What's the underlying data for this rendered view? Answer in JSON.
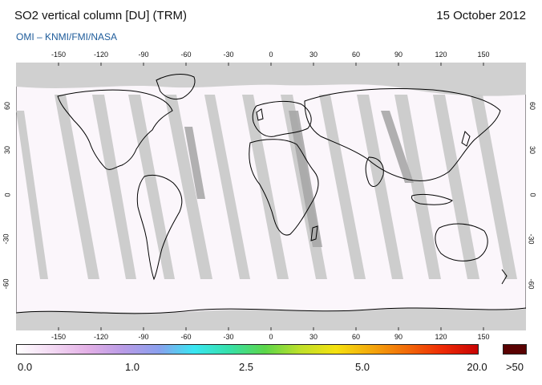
{
  "header": {
    "title": "SO2 vertical column [DU] (TRM)",
    "date": "15 October 2012",
    "credit": "OMI  –  KNMI/FMI/NASA"
  },
  "map": {
    "lon_ticks": [
      "-150",
      "-120",
      "-90",
      "-60",
      "-30",
      "0",
      "30",
      "60",
      "90",
      "120",
      "150"
    ],
    "lat_ticks": [
      "60",
      "30",
      "0",
      "-30",
      "-60"
    ],
    "land_outline_color": "#000000",
    "polar_no_data_color": "#d0d0d0",
    "orbit_gap_color": "#c8c8c8",
    "background_color": "#fbf6fb"
  },
  "colorbar": {
    "labels": [
      "0.0",
      "1.0",
      "2.5",
      "5.0",
      "20.0"
    ],
    "max_label": ">50",
    "max_color": "#5a0202",
    "gradient_colors": [
      "#ffffff",
      "#f3d9f3",
      "#e3b0e6",
      "#b99be6",
      "#8aa0ee",
      "#39e6f2",
      "#36e0a8",
      "#5cd64a",
      "#bfe02a",
      "#f5e10f",
      "#f4a80c",
      "#f26a08",
      "#ee2a05",
      "#c80404"
    ]
  }
}
